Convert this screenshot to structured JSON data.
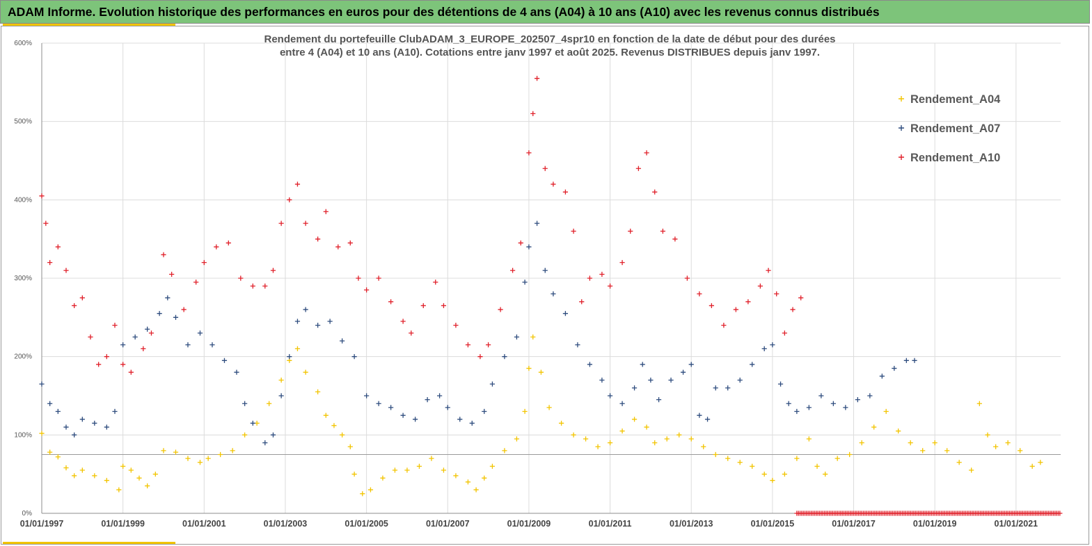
{
  "banner": {
    "title": "ADAM Informe. Evolution historique des performances en euros pour des détentions de 4 ans (A04) à 10 ans (A10) avec les revenus connus distribués"
  },
  "colors": {
    "banner_bg": "#7dc47a",
    "accent_bar": "#f2c400",
    "A04": "#f2c400",
    "A07": "#2e4c7e",
    "A10": "#e0202a"
  },
  "chart_data": {
    "type": "scatter",
    "marker": "plus",
    "title_lines": [
      "Rendement du portefeuille ClubADAM_3_EUROPE_202507_4spr10  en fonction de la date de début pour des durées",
      "entre 4 (A04) et 10 ans (A10). Cotations entre janv 1997 et août 2025. Revenus DISTRIBUES depuis janv 1997."
    ],
    "xlabel": "",
    "ylabel": "",
    "x_range": [
      1997.0,
      2022.1
    ],
    "y_range": [
      0,
      600
    ],
    "y_ticks": [
      0,
      100,
      200,
      300,
      400,
      500,
      600
    ],
    "y_tick_labels": [
      "0%",
      "100%",
      "200%",
      "300%",
      "400%",
      "500%",
      "600%"
    ],
    "x_ticks": [
      1997,
      1999,
      2001,
      2003,
      2005,
      2007,
      2009,
      2011,
      2013,
      2015,
      2017,
      2019,
      2021
    ],
    "x_tick_labels": [
      "01/01/1997",
      "01/01/1999",
      "01/01/2001",
      "01/01/2003",
      "01/01/2005",
      "01/01/2007",
      "01/01/2009",
      "01/01/2011",
      "01/01/2013",
      "01/01/2015",
      "01/01/2017",
      "01/01/2019",
      "01/01/2021"
    ],
    "reference_line_y": 75,
    "grid": "vertical and horizontal",
    "legend_position": "top-right",
    "series": [
      {
        "name": "Rendement_A04",
        "color": "#f2c400",
        "points": [
          [
            1997.0,
            102
          ],
          [
            1997.2,
            78
          ],
          [
            1997.4,
            72
          ],
          [
            1997.6,
            58
          ],
          [
            1997.8,
            48
          ],
          [
            1998.0,
            55
          ],
          [
            1998.3,
            48
          ],
          [
            1998.6,
            42
          ],
          [
            1998.9,
            30
          ],
          [
            1999.0,
            60
          ],
          [
            1999.2,
            55
          ],
          [
            1999.4,
            45
          ],
          [
            1999.6,
            35
          ],
          [
            1999.8,
            50
          ],
          [
            2000.0,
            80
          ],
          [
            2000.3,
            78
          ],
          [
            2000.6,
            70
          ],
          [
            2000.9,
            65
          ],
          [
            2001.1,
            70
          ],
          [
            2001.4,
            75
          ],
          [
            2001.7,
            80
          ],
          [
            2002.0,
            100
          ],
          [
            2002.3,
            115
          ],
          [
            2002.6,
            140
          ],
          [
            2002.9,
            170
          ],
          [
            2003.1,
            195
          ],
          [
            2003.3,
            210
          ],
          [
            2003.5,
            180
          ],
          [
            2003.8,
            155
          ],
          [
            2004.0,
            125
          ],
          [
            2004.2,
            112
          ],
          [
            2004.4,
            100
          ],
          [
            2004.6,
            85
          ],
          [
            2004.7,
            50
          ],
          [
            2004.9,
            25
          ],
          [
            2005.1,
            30
          ],
          [
            2005.4,
            45
          ],
          [
            2005.7,
            55
          ],
          [
            2006.0,
            55
          ],
          [
            2006.3,
            60
          ],
          [
            2006.6,
            70
          ],
          [
            2006.9,
            55
          ],
          [
            2007.2,
            48
          ],
          [
            2007.5,
            40
          ],
          [
            2007.7,
            30
          ],
          [
            2007.9,
            45
          ],
          [
            2008.1,
            60
          ],
          [
            2008.4,
            80
          ],
          [
            2008.7,
            95
          ],
          [
            2008.9,
            130
          ],
          [
            2009.0,
            185
          ],
          [
            2009.1,
            225
          ],
          [
            2009.3,
            180
          ],
          [
            2009.5,
            135
          ],
          [
            2009.8,
            115
          ],
          [
            2010.1,
            100
          ],
          [
            2010.4,
            95
          ],
          [
            2010.7,
            85
          ],
          [
            2011.0,
            90
          ],
          [
            2011.3,
            105
          ],
          [
            2011.6,
            120
          ],
          [
            2011.9,
            110
          ],
          [
            2012.1,
            90
          ],
          [
            2012.4,
            95
          ],
          [
            2012.7,
            100
          ],
          [
            2013.0,
            95
          ],
          [
            2013.3,
            85
          ],
          [
            2013.6,
            75
          ],
          [
            2013.9,
            70
          ],
          [
            2014.2,
            65
          ],
          [
            2014.5,
            60
          ],
          [
            2014.8,
            50
          ],
          [
            2015.0,
            42
          ],
          [
            2015.3,
            50
          ],
          [
            2015.6,
            70
          ],
          [
            2015.9,
            95
          ],
          [
            2016.1,
            60
          ],
          [
            2016.3,
            50
          ],
          [
            2016.6,
            70
          ],
          [
            2016.9,
            75
          ],
          [
            2017.2,
            90
          ],
          [
            2017.5,
            110
          ],
          [
            2017.8,
            130
          ],
          [
            2018.1,
            105
          ],
          [
            2018.4,
            90
          ],
          [
            2018.7,
            80
          ],
          [
            2019.0,
            90
          ],
          [
            2019.3,
            80
          ],
          [
            2019.6,
            65
          ],
          [
            2019.9,
            55
          ],
          [
            2020.1,
            140
          ],
          [
            2020.3,
            100
          ],
          [
            2020.5,
            85
          ],
          [
            2020.8,
            90
          ],
          [
            2021.1,
            80
          ],
          [
            2021.4,
            60
          ],
          [
            2021.6,
            65
          ]
        ]
      },
      {
        "name": "Rendement_A07",
        "color": "#2e4c7e",
        "points": [
          [
            1997.0,
            165
          ],
          [
            1997.2,
            140
          ],
          [
            1997.4,
            130
          ],
          [
            1997.6,
            110
          ],
          [
            1997.8,
            100
          ],
          [
            1998.0,
            120
          ],
          [
            1998.3,
            115
          ],
          [
            1998.6,
            110
          ],
          [
            1998.8,
            130
          ],
          [
            1999.0,
            215
          ],
          [
            1999.3,
            225
          ],
          [
            1999.6,
            235
          ],
          [
            1999.9,
            255
          ],
          [
            2000.1,
            275
          ],
          [
            2000.3,
            250
          ],
          [
            2000.6,
            215
          ],
          [
            2000.9,
            230
          ],
          [
            2001.2,
            215
          ],
          [
            2001.5,
            195
          ],
          [
            2001.8,
            180
          ],
          [
            2002.0,
            140
          ],
          [
            2002.2,
            115
          ],
          [
            2002.5,
            90
          ],
          [
            2002.7,
            100
          ],
          [
            2002.9,
            150
          ],
          [
            2003.1,
            200
          ],
          [
            2003.3,
            245
          ],
          [
            2003.5,
            260
          ],
          [
            2003.8,
            240
          ],
          [
            2004.1,
            245
          ],
          [
            2004.4,
            220
          ],
          [
            2004.7,
            200
          ],
          [
            2005.0,
            150
          ],
          [
            2005.3,
            140
          ],
          [
            2005.6,
            135
          ],
          [
            2005.9,
            125
          ],
          [
            2006.2,
            120
          ],
          [
            2006.5,
            145
          ],
          [
            2006.8,
            150
          ],
          [
            2007.0,
            135
          ],
          [
            2007.3,
            120
          ],
          [
            2007.6,
            115
          ],
          [
            2007.9,
            130
          ],
          [
            2008.1,
            165
          ],
          [
            2008.4,
            200
          ],
          [
            2008.7,
            225
          ],
          [
            2008.9,
            295
          ],
          [
            2009.0,
            340
          ],
          [
            2009.2,
            370
          ],
          [
            2009.4,
            310
          ],
          [
            2009.6,
            280
          ],
          [
            2009.9,
            255
          ],
          [
            2010.2,
            215
          ],
          [
            2010.5,
            190
          ],
          [
            2010.8,
            170
          ],
          [
            2011.0,
            150
          ],
          [
            2011.3,
            140
          ],
          [
            2011.6,
            160
          ],
          [
            2011.8,
            190
          ],
          [
            2012.0,
            170
          ],
          [
            2012.2,
            145
          ],
          [
            2012.5,
            170
          ],
          [
            2012.8,
            180
          ],
          [
            2013.0,
            190
          ],
          [
            2013.2,
            125
          ],
          [
            2013.4,
            120
          ],
          [
            2013.6,
            160
          ],
          [
            2013.9,
            160
          ],
          [
            2014.2,
            170
          ],
          [
            2014.5,
            190
          ],
          [
            2014.8,
            210
          ],
          [
            2015.0,
            215
          ],
          [
            2015.2,
            165
          ],
          [
            2015.4,
            140
          ],
          [
            2015.6,
            130
          ],
          [
            2015.9,
            135
          ],
          [
            2016.2,
            150
          ],
          [
            2016.5,
            140
          ],
          [
            2016.8,
            135
          ],
          [
            2017.1,
            145
          ],
          [
            2017.4,
            150
          ],
          [
            2017.7,
            175
          ],
          [
            2018.0,
            185
          ],
          [
            2018.3,
            195
          ],
          [
            2018.5,
            195
          ]
        ]
      },
      {
        "name": "Rendement_A10",
        "color": "#e0202a",
        "points": [
          [
            1997.0,
            405
          ],
          [
            1997.1,
            370
          ],
          [
            1997.2,
            320
          ],
          [
            1997.4,
            340
          ],
          [
            1997.6,
            310
          ],
          [
            1997.8,
            265
          ],
          [
            1998.0,
            275
          ],
          [
            1998.2,
            225
          ],
          [
            1998.4,
            190
          ],
          [
            1998.6,
            200
          ],
          [
            1998.8,
            240
          ],
          [
            1999.0,
            190
          ],
          [
            1999.2,
            180
          ],
          [
            1999.5,
            210
          ],
          [
            1999.7,
            230
          ],
          [
            2000.0,
            330
          ],
          [
            2000.2,
            305
          ],
          [
            2000.5,
            260
          ],
          [
            2000.8,
            295
          ],
          [
            2001.0,
            320
          ],
          [
            2001.3,
            340
          ],
          [
            2001.6,
            345
          ],
          [
            2001.9,
            300
          ],
          [
            2002.2,
            290
          ],
          [
            2002.5,
            290
          ],
          [
            2002.7,
            310
          ],
          [
            2002.9,
            370
          ],
          [
            2003.1,
            400
          ],
          [
            2003.3,
            420
          ],
          [
            2003.5,
            370
          ],
          [
            2003.8,
            350
          ],
          [
            2004.0,
            385
          ],
          [
            2004.3,
            340
          ],
          [
            2004.6,
            345
          ],
          [
            2004.8,
            300
          ],
          [
            2005.0,
            285
          ],
          [
            2005.3,
            300
          ],
          [
            2005.6,
            270
          ],
          [
            2005.9,
            245
          ],
          [
            2006.1,
            230
          ],
          [
            2006.4,
            265
          ],
          [
            2006.7,
            295
          ],
          [
            2006.9,
            265
          ],
          [
            2007.2,
            240
          ],
          [
            2007.5,
            215
          ],
          [
            2007.8,
            200
          ],
          [
            2008.0,
            215
          ],
          [
            2008.3,
            260
          ],
          [
            2008.6,
            310
          ],
          [
            2008.8,
            345
          ],
          [
            2009.0,
            460
          ],
          [
            2009.1,
            510
          ],
          [
            2009.2,
            555
          ],
          [
            2009.4,
            440
          ],
          [
            2009.6,
            420
          ],
          [
            2009.9,
            410
          ],
          [
            2010.1,
            360
          ],
          [
            2010.3,
            270
          ],
          [
            2010.5,
            300
          ],
          [
            2010.8,
            305
          ],
          [
            2011.0,
            290
          ],
          [
            2011.3,
            320
          ],
          [
            2011.5,
            360
          ],
          [
            2011.7,
            440
          ],
          [
            2011.9,
            460
          ],
          [
            2012.1,
            410
          ],
          [
            2012.3,
            360
          ],
          [
            2012.6,
            350
          ],
          [
            2012.9,
            300
          ],
          [
            2013.2,
            280
          ],
          [
            2013.5,
            265
          ],
          [
            2013.8,
            240
          ],
          [
            2014.1,
            260
          ],
          [
            2014.4,
            270
          ],
          [
            2014.7,
            290
          ],
          [
            2014.9,
            310
          ],
          [
            2015.1,
            280
          ],
          [
            2015.3,
            230
          ],
          [
            2015.5,
            260
          ],
          [
            2015.7,
            275
          ]
        ]
      }
    ],
    "zero_band": {
      "color": "#e0202a",
      "x_range": [
        2015.6,
        2022.1
      ],
      "y": 0
    }
  }
}
